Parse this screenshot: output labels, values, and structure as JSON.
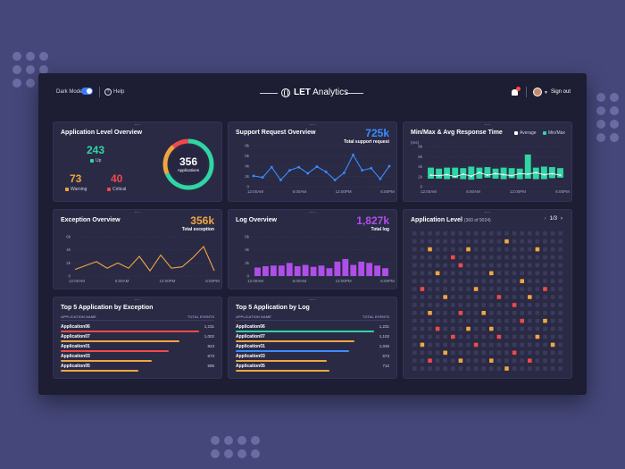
{
  "header": {
    "dark_mode_label": "Dark Mode",
    "help_label": "Help",
    "brand_bold": "LET",
    "brand_rest": " Analytics",
    "signout_label": "Sign out"
  },
  "app_overview": {
    "title": "Application Level Overview",
    "up_value": "243",
    "up_label": "Up",
    "warning_value": "73",
    "warning_label": "Warning",
    "critical_value": "40",
    "critical_label": "Critical",
    "total_value": "356",
    "total_label": "Applications",
    "colors": {
      "up": "#2fd6a3",
      "warning": "#f0a640",
      "critical": "#ef4a4a"
    }
  },
  "support": {
    "title": "Support Request Overview",
    "total": "725k",
    "total_label": "Total support request",
    "color": "#3a8dff"
  },
  "response": {
    "title": "Min/Max & Avg Response Time",
    "legend_avg": "Average",
    "legend_minmax": "Min/Max",
    "unit": "(ms)",
    "color": "#2fd6a3"
  },
  "exception": {
    "title": "Exception Overview",
    "total": "356k",
    "total_label": "Total exception",
    "color": "#f0a640"
  },
  "log": {
    "title": "Log Overview",
    "total": "1,827k",
    "total_label": "Total log",
    "color": "#b04ee8"
  },
  "app_level": {
    "title": "Application Level",
    "sub": "(360 of 9024)",
    "page": "1/3",
    "grid_cols": 20,
    "grid_rows": 18,
    "highlights": [
      [
        2,
        2,
        "o"
      ],
      [
        5,
        3,
        "r"
      ],
      [
        7,
        2,
        "o"
      ],
      [
        12,
        1,
        "o"
      ],
      [
        16,
        2,
        "o"
      ],
      [
        3,
        5,
        "o"
      ],
      [
        6,
        4,
        "r"
      ],
      [
        10,
        5,
        "o"
      ],
      [
        14,
        6,
        "o"
      ],
      [
        1,
        7,
        "r"
      ],
      [
        8,
        7,
        "o"
      ],
      [
        17,
        7,
        "r"
      ],
      [
        4,
        8,
        "o"
      ],
      [
        11,
        8,
        "r"
      ],
      [
        15,
        8,
        "o"
      ],
      [
        2,
        10,
        "o"
      ],
      [
        6,
        10,
        "r"
      ],
      [
        9,
        10,
        "o"
      ],
      [
        13,
        9,
        "r"
      ],
      [
        17,
        11,
        "o"
      ],
      [
        3,
        12,
        "r"
      ],
      [
        7,
        12,
        "o"
      ],
      [
        10,
        12,
        "o"
      ],
      [
        14,
        11,
        "r"
      ],
      [
        5,
        13,
        "r"
      ],
      [
        1,
        14,
        "o"
      ],
      [
        11,
        13,
        "r"
      ],
      [
        16,
        13,
        "o"
      ],
      [
        8,
        14,
        "r"
      ],
      [
        4,
        15,
        "o"
      ],
      [
        13,
        15,
        "r"
      ],
      [
        18,
        14,
        "o"
      ],
      [
        2,
        16,
        "r"
      ],
      [
        6,
        16,
        "o"
      ],
      [
        10,
        16,
        "o"
      ],
      [
        15,
        16,
        "r"
      ],
      [
        12,
        17,
        "o"
      ]
    ]
  },
  "top_exception": {
    "title": "Top 5 Application by Exception",
    "col_name": "APPLICATION NAME",
    "col_total": "TOTAL EVENTS",
    "rows": [
      {
        "name": "Application06",
        "value": "1,231",
        "pct": 1.0,
        "color": "#ef4a4a"
      },
      {
        "name": "Application07",
        "value": "1,002",
        "pct": 0.86,
        "color": "#f0a640"
      },
      {
        "name": "Application01",
        "value": "843",
        "pct": 0.78,
        "color": "#ef4a4a"
      },
      {
        "name": "Application03",
        "value": "673",
        "pct": 0.66,
        "color": "#f0a640"
      },
      {
        "name": "Application05",
        "value": "595",
        "pct": 0.56,
        "color": "#f0a640"
      }
    ]
  },
  "top_log": {
    "title": "Top 5 Application by Log",
    "col_name": "APPLICATION NAME",
    "col_total": "TOTAL EVENTS",
    "rows": [
      {
        "name": "Application06",
        "value": "1,231",
        "pct": 1.0,
        "color": "#2fd6a3"
      },
      {
        "name": "Application07",
        "value": "1,102",
        "pct": 0.86,
        "color": "#f0a640"
      },
      {
        "name": "Application01",
        "value": "1,045",
        "pct": 0.82,
        "color": "#3a8dff"
      },
      {
        "name": "Application03",
        "value": "673",
        "pct": 0.66,
        "color": "#f0a640"
      },
      {
        "name": "Application05",
        "value": "712",
        "pct": 0.68,
        "color": "#f0a640"
      }
    ]
  },
  "chart_data": [
    {
      "type": "line",
      "title": "Support Request Overview",
      "x_ticks": [
        "12:00AM",
        "6:00AM",
        "12:00PM",
        "6:00PM"
      ],
      "y_ticks": [
        "0",
        "2k",
        "4k",
        "6k",
        "8k"
      ],
      "ylim": [
        0,
        8000
      ],
      "values": [
        2100,
        1800,
        3800,
        1300,
        3200,
        3800,
        2600,
        3900,
        2900,
        1300,
        2700,
        6200,
        3200,
        3600,
        1500,
        4000
      ]
    },
    {
      "type": "bar",
      "title": "Min/Max & Avg Response Time",
      "y_ticks": [
        "0",
        "2k",
        "4k",
        "6k",
        "8k"
      ],
      "x_ticks": [
        "12:00AM",
        "6:00AM",
        "12:00PM",
        "6:00PM"
      ],
      "ylim": [
        0,
        8000
      ],
      "series": [
        {
          "name": "Min/Max",
          "min": [
            1600,
            1600,
            1500,
            1700,
            1500,
            1400,
            1600,
            1800,
            1600,
            1500,
            1700,
            1500,
            1600,
            1500,
            1500,
            1700,
            1800
          ],
          "max": [
            3800,
            3600,
            3800,
            3800,
            3700,
            4000,
            3800,
            3900,
            3600,
            3800,
            3700,
            3600,
            6400,
            3800,
            4000,
            3900,
            3700
          ]
        },
        {
          "name": "Average",
          "values": [
            2300,
            2200,
            2400,
            2000,
            2500,
            2100,
            2800,
            2300,
            2600,
            2400,
            2200,
            2600,
            2500,
            2800,
            2400,
            2600,
            2300
          ]
        }
      ]
    },
    {
      "type": "line",
      "title": "Exception Overview",
      "x_ticks": [
        "12:00AM",
        "6:00AM",
        "12:00PM",
        "6:00PM"
      ],
      "y_ticks": [
        "0",
        "2k",
        "4k",
        "6k"
      ],
      "ylim": [
        0,
        6000
      ],
      "values": [
        1000,
        1600,
        2200,
        1200,
        2000,
        1200,
        3000,
        800,
        3200,
        1200,
        1400,
        2800,
        4500,
        800
      ]
    },
    {
      "type": "bar",
      "title": "Log Overview",
      "x_ticks": [
        "12:00AM",
        "6:00AM",
        "12:00PM",
        "6:00PM"
      ],
      "y_ticks": [
        "0",
        "2k",
        "4k",
        "6k"
      ],
      "ylim": [
        0,
        6000
      ],
      "values": [
        1300,
        1500,
        1600,
        1600,
        2000,
        1500,
        1700,
        1400,
        1600,
        1200,
        2200,
        2600,
        1700,
        2200,
        2000,
        1600,
        1200
      ]
    }
  ]
}
